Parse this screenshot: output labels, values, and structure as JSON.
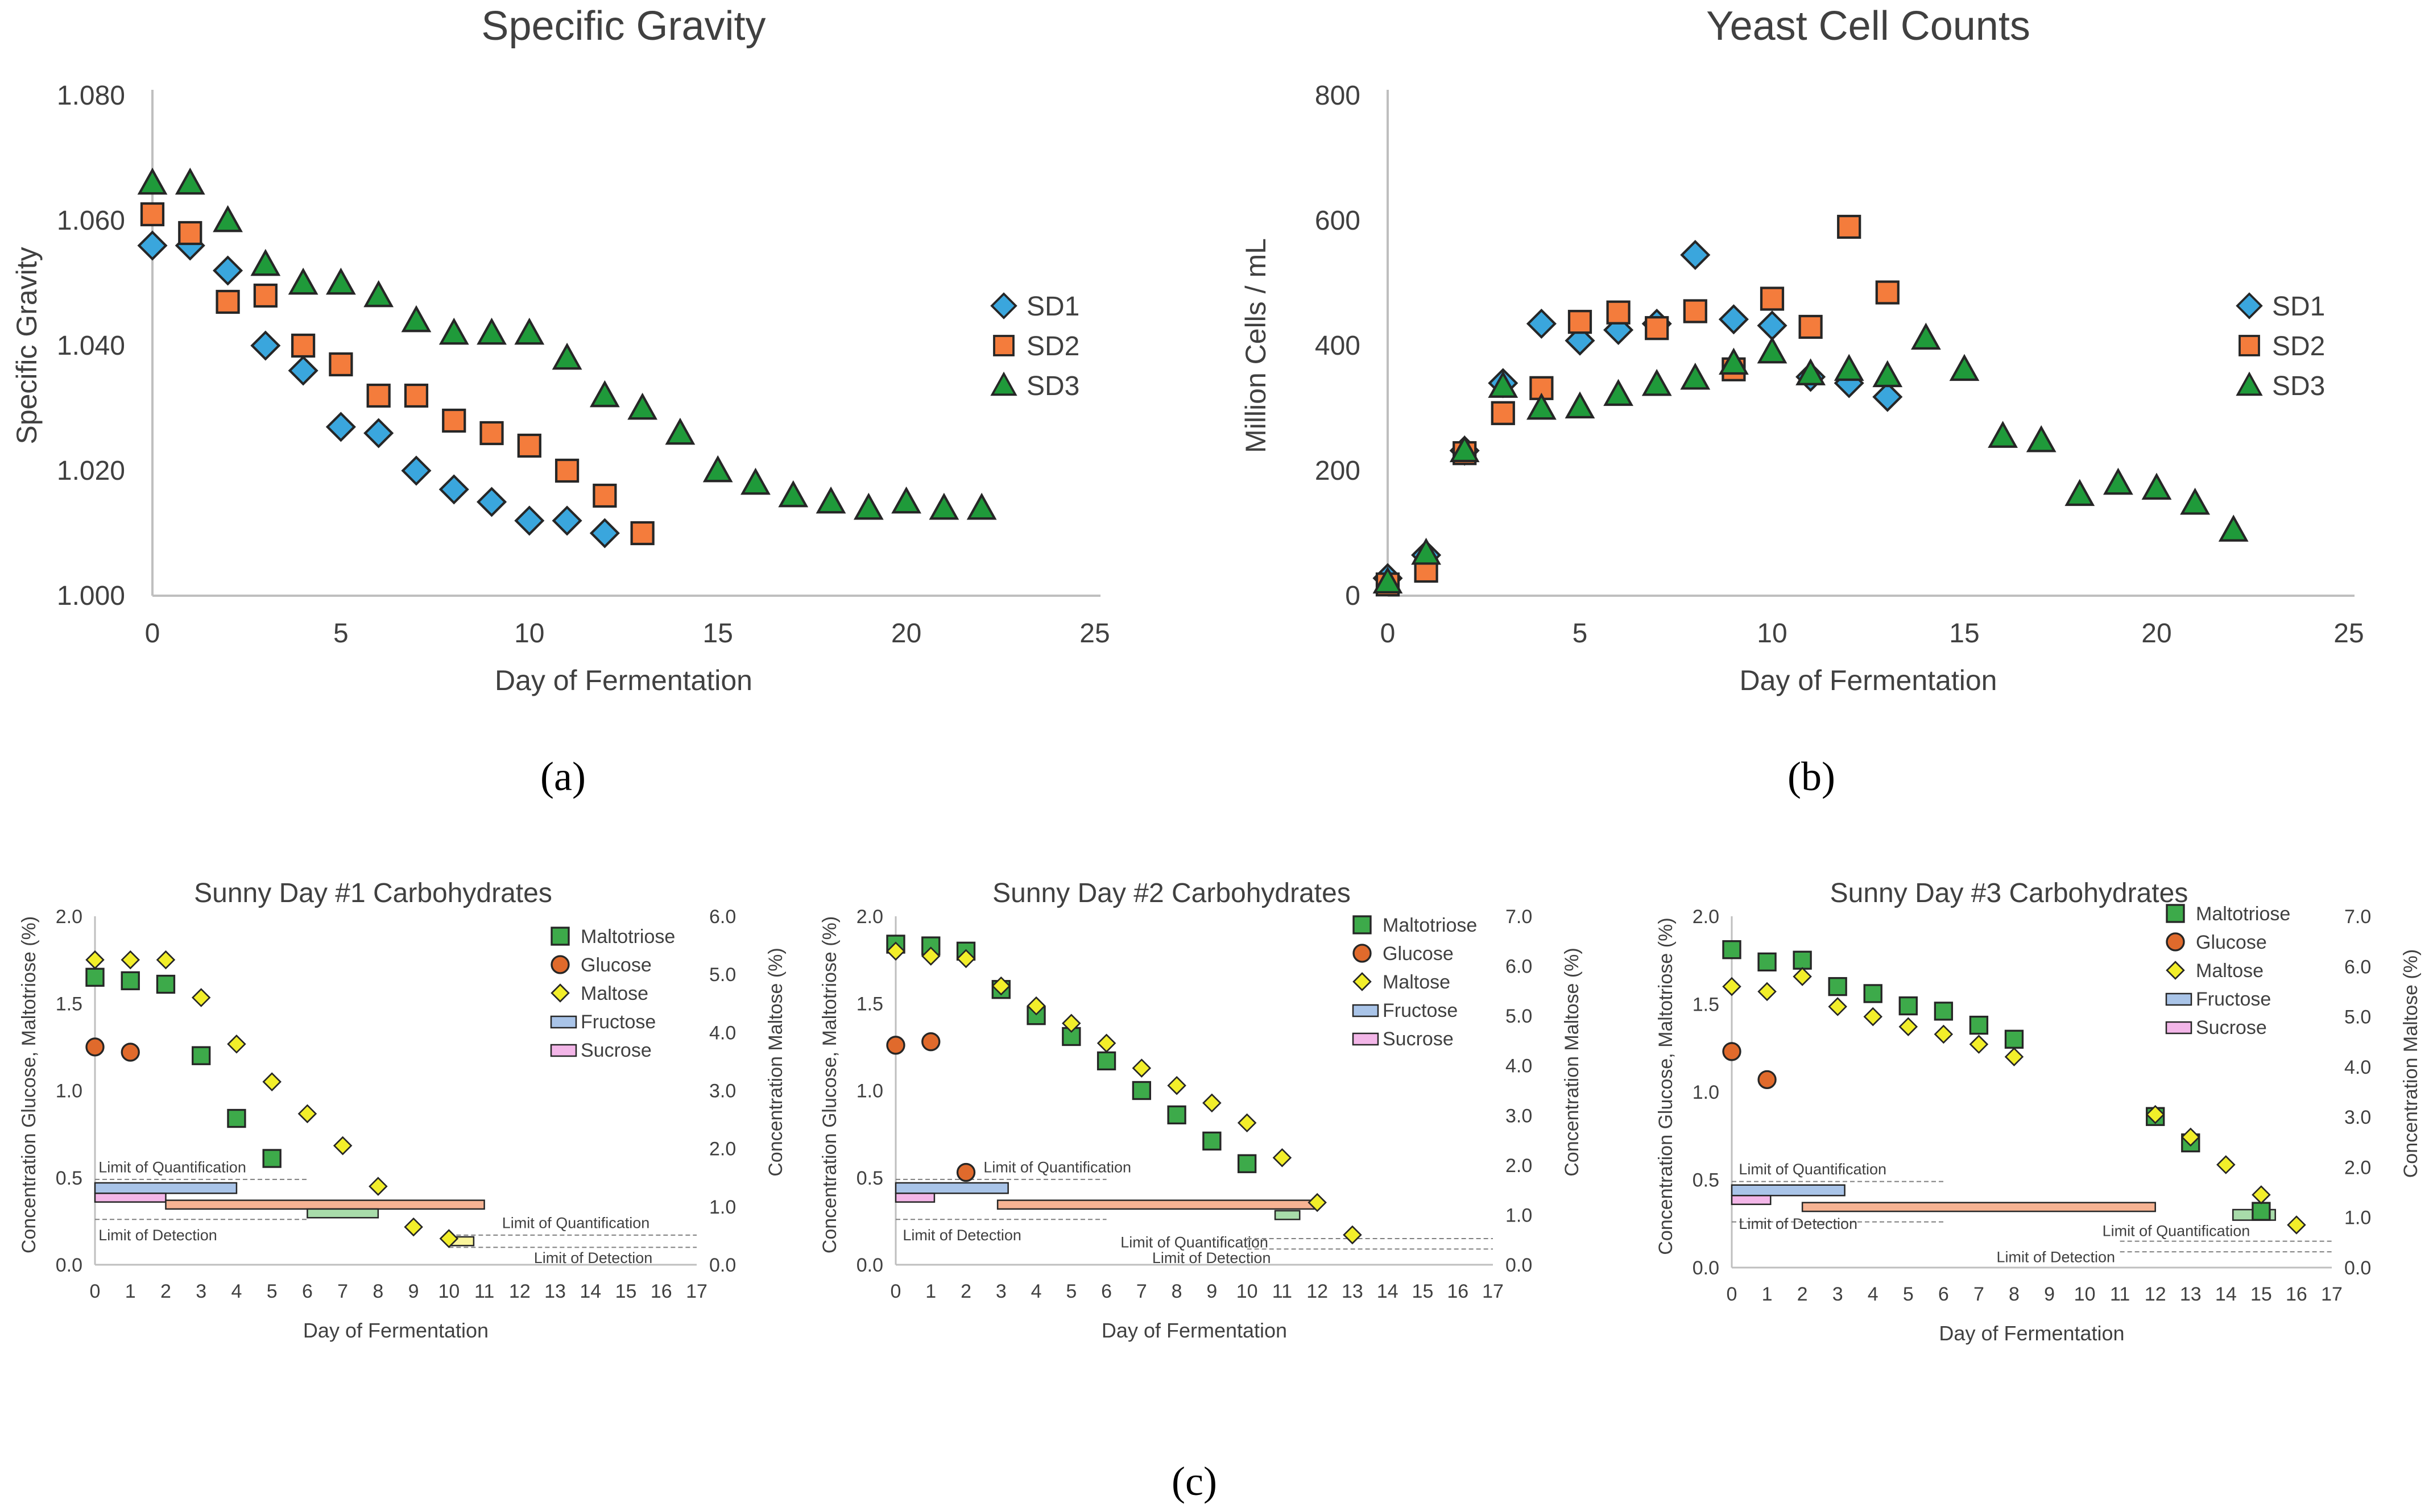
{
  "panel_labels": [
    "(a)",
    "(b)",
    "(c)"
  ],
  "chart_data": [
    {
      "type": "scatter",
      "title": "Specific Gravity",
      "xlabel": "Day of Fermentation",
      "ylabel": "Specific Gravity",
      "xlim": [
        0,
        25
      ],
      "ylim": [
        1.0,
        1.08
      ],
      "xticks": [
        0,
        5,
        10,
        15,
        20,
        25
      ],
      "yticks": [
        1.0,
        1.02,
        1.04,
        1.06,
        1.08
      ],
      "ytick_labels": [
        "1.000",
        "1.020",
        "1.040",
        "1.060",
        "1.080"
      ],
      "legend_position": "right",
      "series": [
        {
          "name": "SD1",
          "marker": "diamond",
          "color": "#3aa6dd",
          "x": [
            0,
            1,
            2,
            3,
            4,
            5,
            6,
            7,
            8,
            9,
            10,
            11,
            12
          ],
          "y": [
            1.056,
            1.056,
            1.052,
            1.04,
            1.036,
            1.027,
            1.026,
            1.02,
            1.017,
            1.015,
            1.012,
            1.012,
            1.01
          ]
        },
        {
          "name": "SD2",
          "marker": "square",
          "color": "#f47c3c",
          "x": [
            0,
            1,
            2,
            3,
            4,
            5,
            6,
            7,
            8,
            9,
            10,
            11,
            12,
            13
          ],
          "y": [
            1.061,
            1.058,
            1.047,
            1.048,
            1.04,
            1.037,
            1.032,
            1.032,
            1.028,
            1.026,
            1.024,
            1.02,
            1.016,
            1.01
          ]
        },
        {
          "name": "SD3",
          "marker": "triangle",
          "color": "#1f9a3a",
          "x": [
            0,
            1,
            2,
            3,
            4,
            5,
            6,
            7,
            8,
            9,
            10,
            11,
            12,
            13,
            14,
            15,
            16,
            17,
            18,
            19,
            20,
            21,
            22
          ],
          "y": [
            1.066,
            1.066,
            1.06,
            1.053,
            1.05,
            1.05,
            1.048,
            1.044,
            1.042,
            1.042,
            1.042,
            1.038,
            1.032,
            1.03,
            1.026,
            1.02,
            1.018,
            1.016,
            1.015,
            1.014,
            1.015,
            1.014,
            1.014
          ]
        }
      ]
    },
    {
      "type": "scatter",
      "title": "Yeast Cell Counts",
      "xlabel": "Day of Fermentation",
      "ylabel": "Million Cells / mL",
      "xlim": [
        0,
        25
      ],
      "ylim": [
        0,
        800
      ],
      "xticks": [
        0,
        5,
        10,
        15,
        20,
        25
      ],
      "yticks": [
        0,
        200,
        400,
        600,
        800
      ],
      "ytick_labels": [
        "0",
        "200",
        "400",
        "600",
        "800"
      ],
      "legend_position": "right",
      "series": [
        {
          "name": "SD1",
          "marker": "diamond",
          "color": "#3aa6dd",
          "x": [
            0,
            1,
            2,
            3,
            4,
            5,
            6,
            7,
            8,
            9,
            10,
            11,
            12,
            13
          ],
          "y": [
            28,
            65,
            232,
            340,
            435,
            408,
            425,
            435,
            545,
            442,
            432,
            350,
            340,
            318
          ]
        },
        {
          "name": "SD2",
          "marker": "square",
          "color": "#f47c3c",
          "x": [
            0,
            1,
            2,
            3,
            4,
            5,
            6,
            7,
            8,
            9,
            10,
            11,
            12,
            13
          ],
          "y": [
            18,
            40,
            228,
            292,
            332,
            438,
            453,
            428,
            455,
            362,
            475,
            430,
            590,
            485
          ]
        },
        {
          "name": "SD3",
          "marker": "triangle",
          "color": "#1f9a3a",
          "x": [
            0,
            1,
            2,
            3,
            4,
            5,
            6,
            7,
            8,
            9,
            10,
            11,
            12,
            13,
            14,
            15,
            16,
            17,
            18,
            19,
            20,
            21,
            22
          ],
          "y": [
            22,
            68,
            232,
            335,
            300,
            302,
            322,
            338,
            348,
            372,
            390,
            355,
            362,
            352,
            412,
            362,
            255,
            248,
            162,
            180,
            172,
            148,
            105
          ]
        }
      ]
    },
    {
      "type": "scatter",
      "title": "Sunny Day #1 Carbohydrates",
      "xlabel": "Day of Fermentation",
      "ylabel": "Concentration Glucose, Maltotriose (%)",
      "ylabel_right": "Concentration Maltose (%)",
      "xlim": [
        0,
        17
      ],
      "ylim": [
        0,
        2.0
      ],
      "ylim_right": [
        0,
        6.0
      ],
      "xticks": [
        0,
        1,
        2,
        3,
        4,
        5,
        6,
        7,
        8,
        9,
        10,
        11,
        12,
        13,
        14,
        15,
        16,
        17
      ],
      "yticks": [
        0,
        0.5,
        1.0,
        1.5,
        2.0
      ],
      "ytick_labels": [
        "0.0",
        "0.5",
        "1.0",
        "1.5",
        "2.0"
      ],
      "yticks_right": [
        0,
        1,
        2,
        3,
        4,
        5,
        6
      ],
      "ytick_labels_right": [
        "0.0",
        "1.0",
        "2.0",
        "3.0",
        "4.0",
        "5.0",
        "6.0"
      ],
      "legend": [
        "Maltotriose",
        "Glucose",
        "Maltose",
        "Fructose",
        "Sucrose"
      ],
      "series": [
        {
          "name": "Maltotriose",
          "marker": "square",
          "color": "#3daa4a",
          "axis": "left",
          "x": [
            0,
            1,
            2,
            3,
            4,
            5
          ],
          "y": [
            1.65,
            1.63,
            1.61,
            1.2,
            0.84,
            0.61
          ]
        },
        {
          "name": "Glucose",
          "marker": "circle",
          "color": "#e06a2c",
          "axis": "left",
          "x": [
            0,
            1
          ],
          "y": [
            1.25,
            1.22
          ]
        },
        {
          "name": "Maltose",
          "marker": "diamond",
          "color": "#f2ee2a",
          "axis": "right",
          "x": [
            0,
            1,
            2,
            3,
            4,
            5,
            6,
            7,
            8,
            9,
            10
          ],
          "y": [
            5.25,
            5.25,
            5.25,
            4.6,
            3.8,
            3.15,
            2.6,
            2.05,
            1.35,
            0.65,
            0.45
          ]
        }
      ],
      "bars": [
        {
          "name": "Fructose",
          "color": "#a9c4e8",
          "x0": 0,
          "x1": 4,
          "y0": 0.41,
          "y1": 0.47
        },
        {
          "name": "Sucrose",
          "color": "#f3b6e8",
          "x0": 0,
          "x1": 2,
          "y0": 0.36,
          "y1": 0.41
        },
        {
          "name": "Glucose",
          "color": "#f6b393",
          "x0": 2,
          "x1": 11,
          "y0": 0.32,
          "y1": 0.37
        },
        {
          "name": "Maltotriose",
          "color": "#a8dcaa",
          "x0": 6,
          "x1": 8,
          "y0": 0.27,
          "y1": 0.32
        },
        {
          "name": "Maltose",
          "color": "#f9f49c",
          "x0": 10,
          "x1": 10.7,
          "y0": 0.11,
          "y1": 0.16
        }
      ],
      "limit_lines": [
        {
          "x0": 0,
          "x1": 6,
          "y": 0.49
        },
        {
          "x0": 0,
          "x1": 6,
          "y": 0.26
        },
        {
          "x0": 10,
          "x1": 17,
          "y": 0.17
        },
        {
          "x0": 10,
          "x1": 17,
          "y": 0.1
        }
      ],
      "annotations": [
        {
          "text": "Limit of Quantification",
          "x": 0.1,
          "y": 0.53
        },
        {
          "text": "Limit of Detection",
          "x": 0.1,
          "y": 0.14
        },
        {
          "text": "Limit of Quantification",
          "x": 11.5,
          "y": 0.21
        },
        {
          "text": "Limit of Detection",
          "x": 12.4,
          "y": 0.01
        }
      ]
    },
    {
      "type": "scatter",
      "title": "Sunny Day #2 Carbohydrates",
      "xlabel": "Day of Fermentation",
      "ylabel": "Concentration Glucose, Maltotriose (%)",
      "ylabel_right": "Concentration Maltose (%)",
      "xlim": [
        0,
        17
      ],
      "ylim": [
        0,
        2.0
      ],
      "ylim_right": [
        0,
        7.0
      ],
      "xticks": [
        0,
        1,
        2,
        3,
        4,
        5,
        6,
        7,
        8,
        9,
        10,
        11,
        12,
        13,
        14,
        15,
        16,
        17
      ],
      "yticks": [
        0,
        0.5,
        1.0,
        1.5,
        2.0
      ],
      "ytick_labels": [
        "0.0",
        "0.5",
        "1.0",
        "1.5",
        "2.0"
      ],
      "yticks_right": [
        0,
        1,
        2,
        3,
        4,
        5,
        6,
        7
      ],
      "ytick_labels_right": [
        "0.0",
        "1.0",
        "2.0",
        "3.0",
        "4.0",
        "5.0",
        "6.0",
        "7.0"
      ],
      "legend": [
        "Maltotriose",
        "Glucose",
        "Maltose",
        "Fructose",
        "Sucrose"
      ],
      "series": [
        {
          "name": "Maltotriose",
          "marker": "square",
          "color": "#3daa4a",
          "axis": "left",
          "x": [
            0,
            1,
            2,
            3,
            4,
            5,
            6,
            7,
            8,
            9,
            10
          ],
          "y": [
            1.84,
            1.83,
            1.8,
            1.58,
            1.43,
            1.31,
            1.17,
            1.0,
            0.86,
            0.71,
            0.58
          ]
        },
        {
          "name": "Glucose",
          "marker": "circle",
          "color": "#e06a2c",
          "axis": "left",
          "x": [
            0,
            1,
            2
          ],
          "y": [
            1.26,
            1.28,
            0.53
          ]
        },
        {
          "name": "Maltose",
          "marker": "diamond",
          "color": "#f2ee2a",
          "axis": "right",
          "x": [
            0,
            1,
            2,
            3,
            4,
            5,
            6,
            7,
            8,
            9,
            10,
            11,
            12,
            13
          ],
          "y": [
            6.3,
            6.2,
            6.15,
            5.6,
            5.2,
            4.85,
            4.45,
            3.95,
            3.6,
            3.25,
            2.85,
            2.15,
            1.25,
            0.6
          ]
        }
      ],
      "bars": [
        {
          "name": "Fructose",
          "color": "#a9c4e8",
          "x0": 0,
          "x1": 3.2,
          "y0": 0.41,
          "y1": 0.47
        },
        {
          "name": "Sucrose",
          "color": "#f3b6e8",
          "x0": 0,
          "x1": 1.1,
          "y0": 0.36,
          "y1": 0.41
        },
        {
          "name": "Glucose",
          "color": "#f6b393",
          "x0": 2.9,
          "x1": 12,
          "y0": 0.32,
          "y1": 0.37
        },
        {
          "name": "Maltotriose",
          "color": "#a8dcaa",
          "x0": 10.8,
          "x1": 11.5,
          "y0": 0.26,
          "y1": 0.31
        }
      ],
      "limit_lines": [
        {
          "x0": 0,
          "x1": 6,
          "y": 0.49
        },
        {
          "x0": 0,
          "x1": 6,
          "y": 0.26
        },
        {
          "x0": 10,
          "x1": 17,
          "y": 0.15
        },
        {
          "x0": 10,
          "x1": 17,
          "y": 0.09
        }
      ],
      "annotations": [
        {
          "text": "Limit of Quantification",
          "x": 2.5,
          "y": 0.53
        },
        {
          "text": "Limit of Detection",
          "x": 0.2,
          "y": 0.14
        },
        {
          "text": "Limit of Quantification",
          "x": 6.4,
          "y": 0.1
        },
        {
          "text": "Limit of Detection",
          "x": 7.3,
          "y": 0.01
        }
      ]
    },
    {
      "type": "scatter",
      "title": "Sunny Day #3 Carbohydrates",
      "xlabel": "Day of Fermentation",
      "ylabel": "Concentration Glucose, Maltotriose (%)",
      "ylabel_right": "Concentration Maltose (%)",
      "xlim": [
        0,
        17
      ],
      "ylim": [
        0,
        2.0
      ],
      "ylim_right": [
        0,
        7.0
      ],
      "xticks": [
        0,
        1,
        2,
        3,
        4,
        5,
        6,
        7,
        8,
        9,
        10,
        11,
        12,
        13,
        14,
        15,
        16,
        17
      ],
      "yticks": [
        0,
        0.5,
        1.0,
        1.5,
        2.0
      ],
      "ytick_labels": [
        "0.0",
        "0.5",
        "1.0",
        "1.5",
        "2.0"
      ],
      "yticks_right": [
        0,
        1,
        2,
        3,
        4,
        5,
        6,
        7
      ],
      "ytick_labels_right": [
        "0.0",
        "1.0",
        "2.0",
        "3.0",
        "4.0",
        "5.0",
        "6.0",
        "7.0"
      ],
      "legend": [
        "Maltotriose",
        "Glucose",
        "Maltose",
        "Fructose",
        "Sucrose"
      ],
      "series": [
        {
          "name": "Maltotriose",
          "marker": "square",
          "color": "#3daa4a",
          "axis": "left",
          "x": [
            0,
            1,
            2,
            3,
            4,
            5,
            6,
            7,
            8,
            12,
            13,
            15
          ],
          "y": [
            1.81,
            1.74,
            1.75,
            1.6,
            1.56,
            1.49,
            1.46,
            1.38,
            1.3,
            0.86,
            0.71,
            0.32
          ]
        },
        {
          "name": "Glucose",
          "marker": "circle",
          "color": "#e06a2c",
          "axis": "left",
          "x": [
            0,
            1
          ],
          "y": [
            1.23,
            1.07
          ]
        },
        {
          "name": "Maltose",
          "marker": "diamond",
          "color": "#f2ee2a",
          "axis": "right",
          "x": [
            0,
            1,
            2,
            3,
            4,
            5,
            6,
            7,
            8,
            12,
            13,
            14,
            15,
            16
          ],
          "y": [
            5.6,
            5.5,
            5.8,
            5.2,
            5.0,
            4.8,
            4.65,
            4.45,
            4.2,
            3.05,
            2.6,
            2.05,
            1.45,
            0.85
          ]
        }
      ],
      "bars": [
        {
          "name": "Fructose",
          "color": "#a9c4e8",
          "x0": 0,
          "x1": 3.2,
          "y0": 0.41,
          "y1": 0.47
        },
        {
          "name": "Sucrose",
          "color": "#f3b6e8",
          "x0": 0,
          "x1": 1.1,
          "y0": 0.36,
          "y1": 0.41
        },
        {
          "name": "Glucose",
          "color": "#f6b393",
          "x0": 2,
          "x1": 12,
          "y0": 0.32,
          "y1": 0.37
        },
        {
          "name": "Maltotriose",
          "color": "#a8dcaa",
          "x0": 14.2,
          "x1": 15.4,
          "y0": 0.27,
          "y1": 0.33
        }
      ],
      "limit_lines": [
        {
          "x0": 0,
          "x1": 6,
          "y": 0.49
        },
        {
          "x0": 0,
          "x1": 6,
          "y": 0.26
        },
        {
          "x0": 11,
          "x1": 17,
          "y": 0.15
        },
        {
          "x0": 11,
          "x1": 17,
          "y": 0.09
        }
      ],
      "annotations": [
        {
          "text": "Limit of Quantification",
          "x": 0.2,
          "y": 0.53
        },
        {
          "text": "Limit of Detection",
          "x": 0.2,
          "y": 0.22
        },
        {
          "text": "Limit of Quantification",
          "x": 10.5,
          "y": 0.18
        },
        {
          "text": "Limit of Detection",
          "x": 7.5,
          "y": 0.03
        }
      ]
    }
  ]
}
